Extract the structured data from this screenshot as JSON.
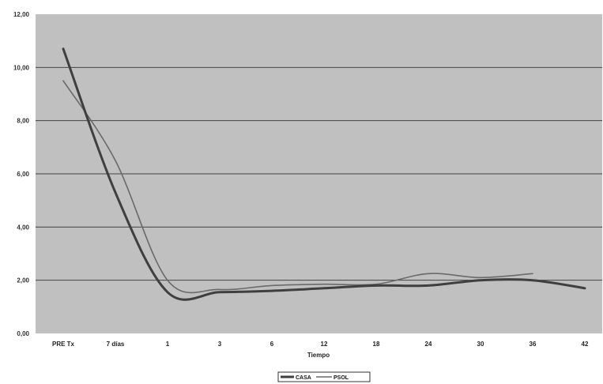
{
  "chart_data": {
    "type": "line",
    "xlabel": "Tiempo",
    "ylabel": "",
    "categories": [
      "PRE Tx",
      "7 días",
      "1",
      "3",
      "6",
      "12",
      "18",
      "24",
      "30",
      "36",
      "42"
    ],
    "ylim": [
      0,
      12
    ],
    "yticks": [
      0,
      2,
      4,
      6,
      8,
      10,
      12
    ],
    "ytick_labels": [
      "0,00",
      "2,00",
      "4,00",
      "6,00",
      "8,00",
      "10,00",
      "12,00"
    ],
    "grid": true,
    "legend_position": "bottom-center",
    "series": [
      {
        "name": "CASA",
        "color": "#3f3f3f",
        "values": [
          10.7,
          5.3,
          1.55,
          1.55,
          1.6,
          1.7,
          1.8,
          1.8,
          2.0,
          2.0,
          1.7
        ]
      },
      {
        "name": "PSOL",
        "color": "#6a6a6a",
        "values": [
          9.5,
          6.5,
          2.0,
          1.65,
          1.8,
          1.85,
          1.85,
          2.25,
          2.1,
          2.25,
          null
        ]
      }
    ],
    "colors": {
      "plot_background": "#c0c0c0",
      "gridline": "#444444"
    }
  }
}
